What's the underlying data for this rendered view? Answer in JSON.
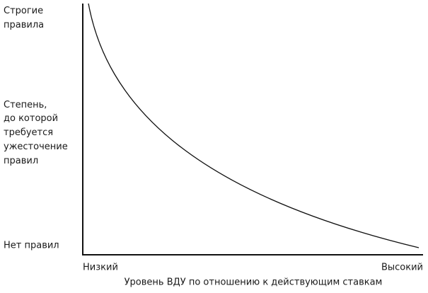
{
  "y_axis": {
    "top_label": [
      "Строгие",
      "правила"
    ],
    "title": [
      "Степень,",
      "до которой",
      "требуется",
      "ужесточение",
      "правил"
    ],
    "bottom_label": "Нет правил"
  },
  "x_axis": {
    "left_label": "Низкий",
    "right_label": "Высокий",
    "title": "Уровень ВДУ по отношению к действующим ставкам"
  }
}
